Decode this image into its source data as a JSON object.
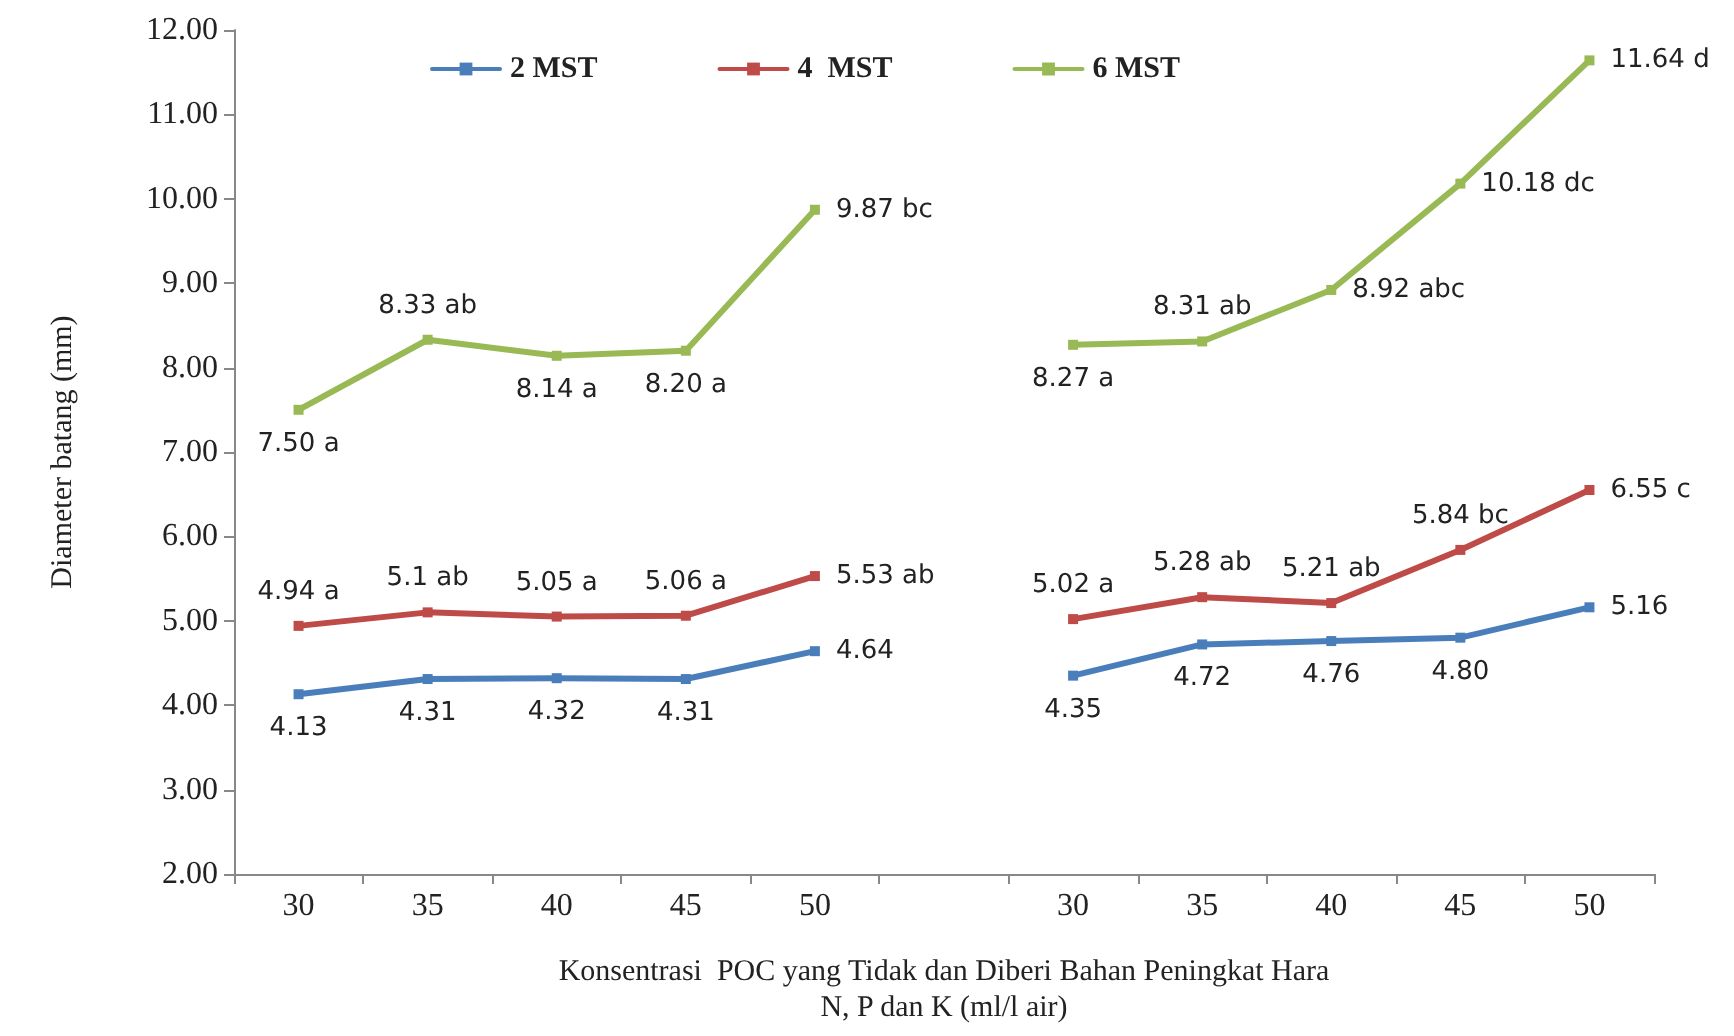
{
  "chart_data": {
    "type": "line",
    "xlabel": "Konsentrasi  POC yang Tidak dan Diberi Bahan Peningkat Hara\nN, P dan K (ml/l air)",
    "ylabel": "Diameter batang (mm)",
    "categories": [
      "30",
      "35",
      "40",
      "45",
      "50",
      null,
      "30",
      "35",
      "40",
      "45",
      "50"
    ],
    "series": [
      {
        "name": "2 MST",
        "color": "#4a7ebb",
        "values": [
          4.13,
          4.31,
          4.32,
          4.31,
          4.64,
          null,
          4.35,
          4.72,
          4.76,
          4.8,
          5.16
        ],
        "value_labels": [
          "4.13",
          "4.31",
          "4.32",
          "4.31",
          "4.64",
          null,
          "4.35",
          "4.72",
          "4.76",
          "4.80",
          "5.16"
        ]
      },
      {
        "name": "4  MST",
        "color": "#be4b48",
        "values": [
          4.94,
          5.1,
          5.05,
          5.06,
          5.53,
          null,
          5.02,
          5.28,
          5.21,
          5.84,
          6.55
        ],
        "value_labels": [
          "4.94 a",
          "5.1 ab",
          "5.05 a",
          "5.06 a",
          "5.53 ab",
          null,
          "5.02 a",
          "5.28 ab",
          "5.21 ab",
          "5.84 bc",
          "6.55 c"
        ]
      },
      {
        "name": "6 MST",
        "color": "#98b954",
        "values": [
          7.5,
          8.33,
          8.14,
          8.2,
          9.87,
          null,
          8.27,
          8.31,
          8.92,
          10.18,
          11.64
        ],
        "value_labels": [
          "7.50 a",
          "8.33 ab",
          "8.14 a",
          "8.20 a",
          "9.87 bc",
          null,
          "8.27 a",
          "8.31 ab",
          "8.92 abc",
          "10.18 dc",
          "11.64 d"
        ]
      }
    ],
    "ylim": [
      2,
      12
    ],
    "yticks": [
      {
        "value": 2,
        "label": "2.00"
      },
      {
        "value": 3,
        "label": "3.00"
      },
      {
        "value": 4,
        "label": "4.00"
      },
      {
        "value": 5,
        "label": "5.00"
      },
      {
        "value": 6,
        "label": "6.00"
      },
      {
        "value": 7,
        "label": "7.00"
      },
      {
        "value": 8,
        "label": "8.00"
      },
      {
        "value": 9,
        "label": "9.00"
      },
      {
        "value": 10,
        "label": "10.00"
      },
      {
        "value": 11,
        "label": "11.00"
      },
      {
        "value": 12,
        "label": "12.00"
      }
    ],
    "grid": false,
    "legend": "top",
    "marker": "square",
    "line_style": "solid"
  }
}
